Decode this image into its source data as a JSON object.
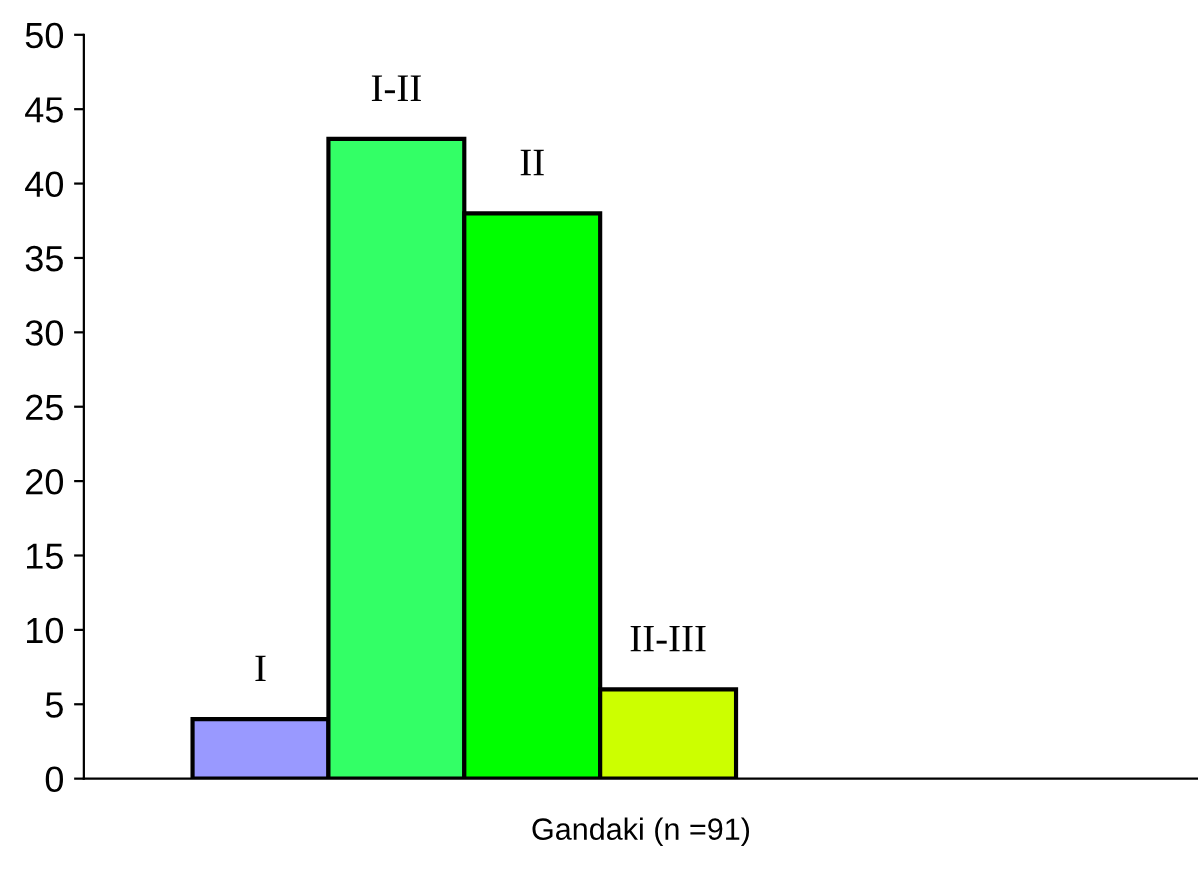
{
  "chart_data": {
    "type": "bar",
    "xlabel": "Gandaki (n =91)",
    "categories": [
      "I",
      "I-II",
      "II",
      "II-III"
    ],
    "values": [
      4,
      43,
      38,
      6
    ],
    "colors": [
      "#9999ff",
      "#33ff66",
      "#00ff00",
      "#ccff00"
    ],
    "ylim": [
      0,
      50
    ],
    "yticks": [
      0,
      5,
      10,
      15,
      20,
      25,
      30,
      35,
      40,
      45,
      50
    ],
    "grid": false,
    "legend": false
  }
}
